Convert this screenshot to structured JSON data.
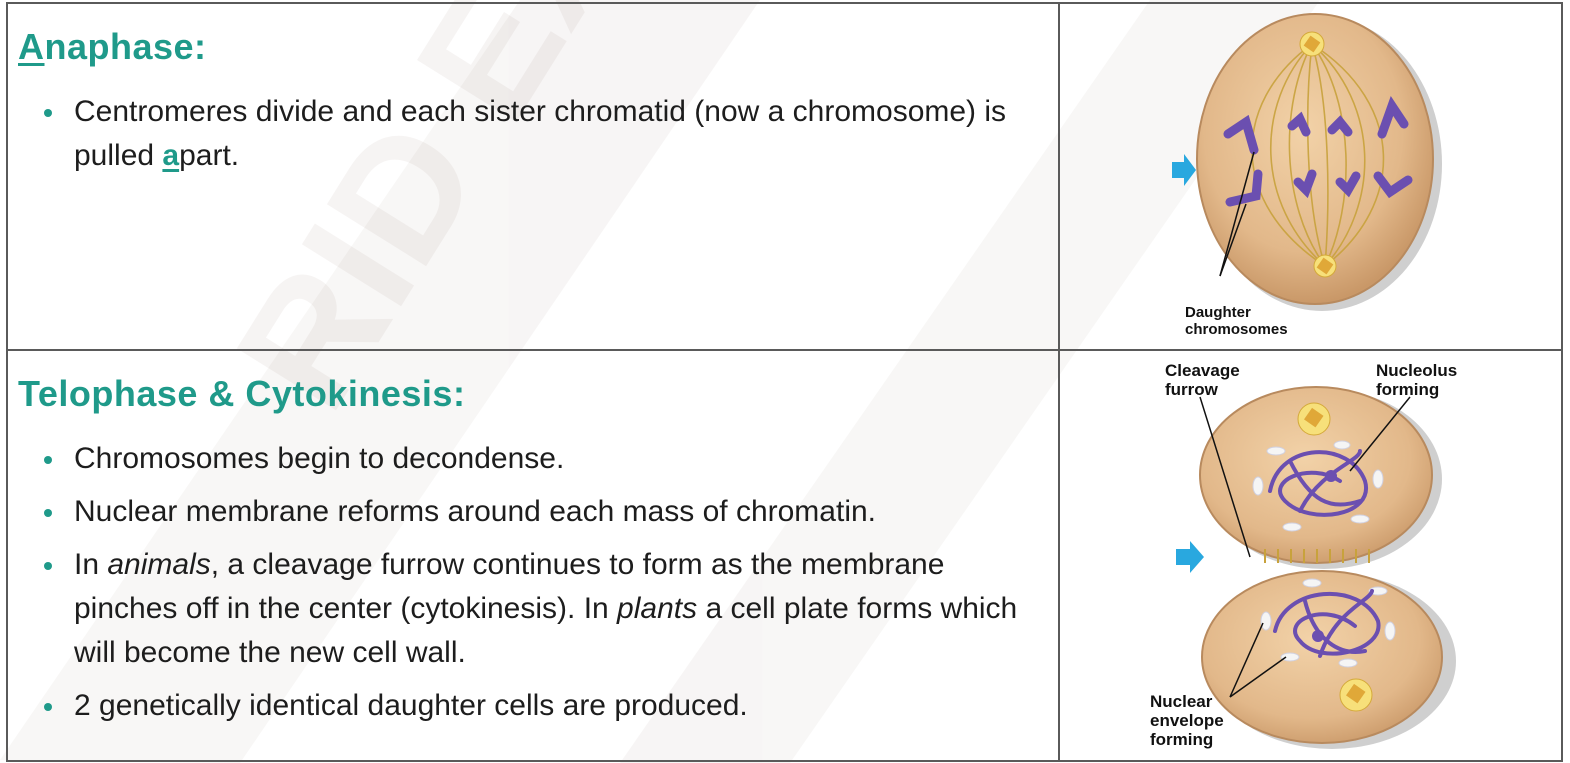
{
  "anaphase": {
    "title_first_letter": "A",
    "title_rest": "naphase:",
    "bullet1_before": "Centromeres divide and each sister chromatid (now a chromosome) is pulled ",
    "bullet1_highlight": "a",
    "bullet1_after": "part.",
    "figure_label_line1": "Daughter",
    "figure_label_line2": "chromosomes"
  },
  "telophase": {
    "title": "Telophase & Cytokinesis:",
    "bullets": [
      "Chromosomes begin to decondense.",
      "Nuclear membrane reforms around each mass of chromatin."
    ],
    "bullet3_part1": "In ",
    "bullet3_italic1": "animals",
    "bullet3_part2": ", a cleavage furrow continues to form as the membrane pinches off in the center (cytokinesis). In ",
    "bullet3_italic2": "plants",
    "bullet3_part3": " a cell plate forms which will become the new cell wall.",
    "bullet4": "2 genetically identical daughter cells are produced.",
    "figure_labels": {
      "cleavage_1": "Cleavage",
      "cleavage_2": "furrow",
      "nucleolus_1": "Nucleolus",
      "nucleolus_2": "forming",
      "envelope_1": "Nuclear",
      "envelope_2": "envelope",
      "envelope_3": "forming"
    }
  },
  "colors": {
    "accent": "#1f9a8a",
    "cell": "#e2b88a",
    "chromosome": "#6b4fb0",
    "arrow": "#29a8df"
  }
}
